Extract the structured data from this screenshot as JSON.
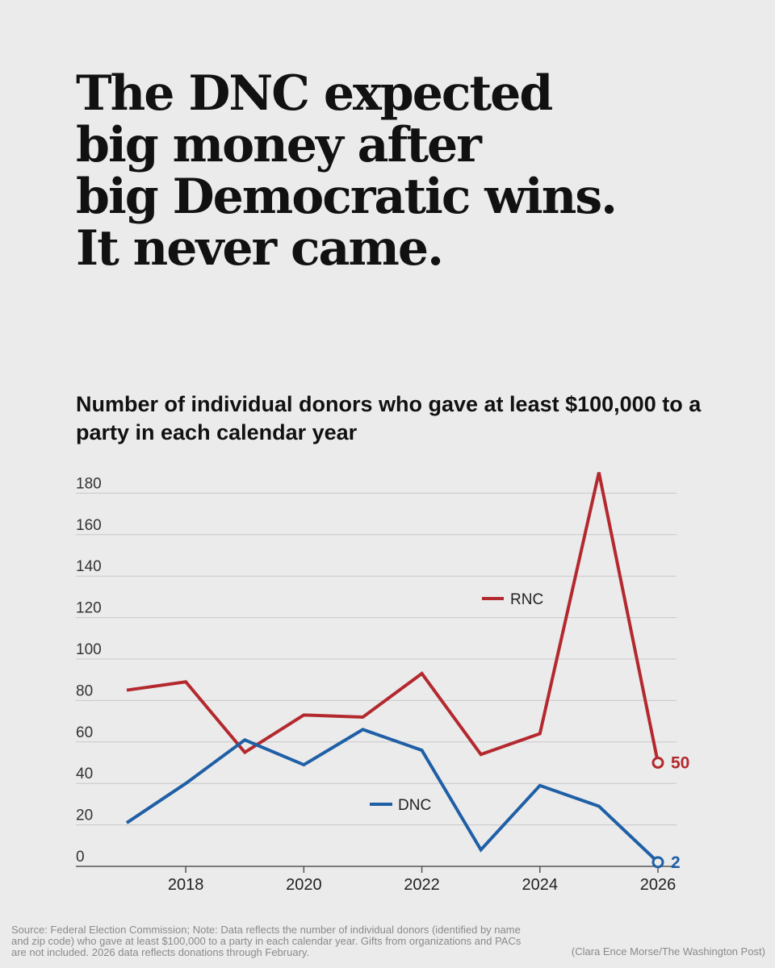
{
  "headline": {
    "lines": [
      "The DNC expected",
      "big money after",
      "big Democratic wins.",
      "It never came."
    ]
  },
  "colors": {
    "rnc": "#b3292e",
    "dnc": "#1f5fa6",
    "background": "#ebebeb",
    "grid": "#c8c8c8"
  },
  "chart_data": {
    "type": "line",
    "title": "Number of individual donors who gave at least $100,000 to a party in each calendar year",
    "x": [
      2017,
      2018,
      2019,
      2020,
      2021,
      2022,
      2023,
      2024,
      2025,
      2026
    ],
    "x_ticks": [
      "2018",
      "2020",
      "2022",
      "2024",
      "2026"
    ],
    "y_ticks": [
      "0",
      "20",
      "40",
      "60",
      "80",
      "100",
      "120",
      "140",
      "160",
      "180"
    ],
    "ylim": [
      0,
      180
    ],
    "grid": true,
    "legend_placement": "inline labels",
    "series": [
      {
        "name": "RNC",
        "values": [
          85,
          89,
          55,
          73,
          72,
          93,
          54,
          64,
          190,
          50
        ],
        "end_label": "50"
      },
      {
        "name": "DNC",
        "values": [
          21,
          40,
          61,
          49,
          66,
          56,
          8,
          39,
          29,
          2
        ],
        "end_label": "2"
      }
    ]
  },
  "footer": {
    "source": "Source: Federal Election Commission; Note: Data reflects the number of individual donors (identified by name and zip code) who gave at least $100,000 to a party in each calendar year. Gifts from organizations and PACs are not included. 2026 data reflects donations through February.",
    "credit": "(Clara Ence Morse/The Washington Post)"
  }
}
